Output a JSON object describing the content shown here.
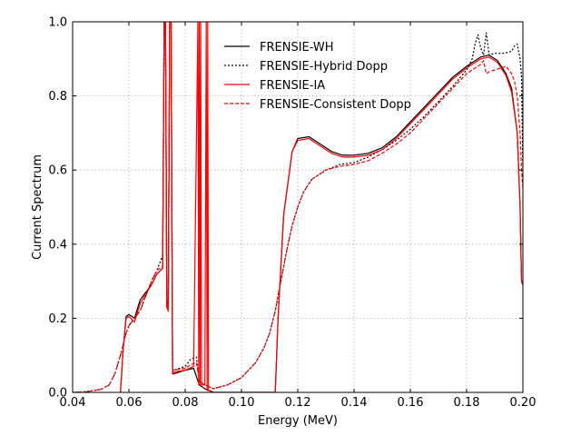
{
  "chart_data": {
    "type": "line",
    "xlabel": "Energy (MeV)",
    "ylabel": "Current Spectrum",
    "xlim": [
      0.04,
      0.2
    ],
    "ylim": [
      0,
      1.0
    ],
    "xticks": [
      "0.04",
      "0.06",
      "0.08",
      "0.10",
      "0.12",
      "0.14",
      "0.16",
      "0.18",
      "0.20"
    ],
    "yticks": [
      "0.0",
      "0.2",
      "0.4",
      "0.6",
      "0.8",
      "1.0"
    ],
    "grid": true,
    "legend_position": "top-right",
    "series": [
      {
        "name": "FRENSIE-WH",
        "color": "#000000",
        "dash": "solid",
        "x": [
          0.057,
          0.058,
          0.059,
          0.06,
          0.062,
          0.064,
          0.066,
          0.068,
          0.07,
          0.072,
          0.0725,
          0.073,
          0.0735,
          0.074,
          0.0745,
          0.075,
          0.0755,
          0.076,
          0.08,
          0.083,
          0.085,
          0.087,
          0.09,
          0.1,
          0.108,
          0.11,
          0.112,
          0.113,
          0.115,
          0.118,
          0.12,
          0.124,
          0.128,
          0.132,
          0.136,
          0.14,
          0.145,
          0.15,
          0.155,
          0.16,
          0.165,
          0.17,
          0.175,
          0.18,
          0.185,
          0.188,
          0.191,
          0.194,
          0.196,
          0.198,
          0.199,
          0.1995,
          0.2
        ],
        "y": [
          0.0,
          0.12,
          0.205,
          0.21,
          0.2,
          0.25,
          0.27,
          0.29,
          0.32,
          0.335,
          1.0,
          1.0,
          0.23,
          0.22,
          1.0,
          1.0,
          0.05,
          0.05,
          0.06,
          0.065,
          0.02,
          0.01,
          0.0,
          0.0,
          0.0,
          0.0,
          0.0,
          0.2,
          0.48,
          0.65,
          0.685,
          0.69,
          0.67,
          0.65,
          0.64,
          0.64,
          0.645,
          0.66,
          0.69,
          0.73,
          0.77,
          0.81,
          0.85,
          0.88,
          0.905,
          0.91,
          0.895,
          0.86,
          0.82,
          0.7,
          0.5,
          0.3,
          0.29
        ]
      },
      {
        "name": "FRENSIE-Hybrid Dopp",
        "color": "#000000",
        "dash": "dotted",
        "x": [
          0.04,
          0.045,
          0.05,
          0.053,
          0.055,
          0.057,
          0.059,
          0.06,
          0.062,
          0.064,
          0.066,
          0.068,
          0.07,
          0.072,
          0.0725,
          0.073,
          0.0735,
          0.074,
          0.0745,
          0.075,
          0.0755,
          0.076,
          0.08,
          0.082,
          0.084,
          0.085,
          0.087,
          0.09,
          0.095,
          0.1,
          0.105,
          0.108,
          0.11,
          0.112,
          0.114,
          0.116,
          0.118,
          0.12,
          0.122,
          0.125,
          0.13,
          0.135,
          0.14,
          0.145,
          0.15,
          0.155,
          0.16,
          0.165,
          0.17,
          0.175,
          0.18,
          0.182,
          0.183,
          0.184,
          0.185,
          0.186,
          0.187,
          0.188,
          0.19,
          0.193,
          0.196,
          0.197,
          0.198,
          0.199,
          0.1995,
          0.2
        ],
        "y": [
          0.0,
          0.002,
          0.008,
          0.02,
          0.05,
          0.1,
          0.16,
          0.18,
          0.2,
          0.22,
          0.26,
          0.3,
          0.33,
          0.37,
          1.0,
          1.0,
          0.25,
          0.24,
          1.0,
          1.0,
          0.06,
          0.06,
          0.07,
          0.09,
          0.095,
          0.03,
          0.02,
          0.01,
          0.02,
          0.04,
          0.08,
          0.12,
          0.16,
          0.22,
          0.3,
          0.38,
          0.45,
          0.5,
          0.54,
          0.575,
          0.6,
          0.615,
          0.62,
          0.635,
          0.655,
          0.68,
          0.71,
          0.745,
          0.785,
          0.825,
          0.87,
          0.9,
          0.94,
          0.965,
          0.93,
          0.91,
          0.97,
          0.91,
          0.915,
          0.915,
          0.92,
          0.935,
          0.94,
          0.9,
          0.85,
          0.6
        ]
      },
      {
        "name": "FRENSIE-IA",
        "color": "#ff0000",
        "dash": "solid",
        "x": [
          0.057,
          0.058,
          0.059,
          0.06,
          0.062,
          0.064,
          0.066,
          0.068,
          0.07,
          0.072,
          0.0725,
          0.073,
          0.0735,
          0.074,
          0.0745,
          0.075,
          0.0755,
          0.076,
          0.08,
          0.083,
          0.0845,
          0.0848,
          0.085,
          0.0853,
          0.0855,
          0.0858,
          0.086,
          0.087,
          0.0875,
          0.0878,
          0.088,
          0.0883,
          0.089,
          0.09,
          0.1,
          0.108,
          0.11,
          0.112,
          0.113,
          0.115,
          0.118,
          0.12,
          0.124,
          0.128,
          0.132,
          0.136,
          0.14,
          0.145,
          0.15,
          0.155,
          0.16,
          0.165,
          0.17,
          0.175,
          0.18,
          0.185,
          0.188,
          0.191,
          0.194,
          0.196,
          0.198,
          0.199,
          0.1995,
          0.2
        ],
        "y": [
          0.0,
          0.12,
          0.2,
          0.205,
          0.19,
          0.24,
          0.265,
          0.29,
          0.32,
          0.335,
          1.0,
          1.0,
          0.23,
          0.22,
          1.0,
          1.0,
          0.05,
          0.055,
          0.06,
          0.07,
          1.0,
          0.02,
          1.0,
          0.02,
          1.0,
          0.02,
          0.02,
          0.02,
          1.0,
          0.005,
          1.0,
          0.005,
          0.005,
          0.0,
          0.0,
          0.0,
          0.0,
          0.0,
          0.2,
          0.48,
          0.65,
          0.68,
          0.685,
          0.665,
          0.645,
          0.635,
          0.635,
          0.64,
          0.655,
          0.685,
          0.725,
          0.765,
          0.805,
          0.845,
          0.875,
          0.9,
          0.905,
          0.89,
          0.855,
          0.81,
          0.7,
          0.5,
          0.3,
          0.29
        ]
      },
      {
        "name": "FRENSIE-Consistent Dopp",
        "color": "#ff0000",
        "dash": "dashed",
        "x": [
          0.04,
          0.045,
          0.05,
          0.053,
          0.055,
          0.057,
          0.059,
          0.06,
          0.062,
          0.064,
          0.066,
          0.068,
          0.07,
          0.072,
          0.0725,
          0.073,
          0.0735,
          0.074,
          0.0745,
          0.075,
          0.0755,
          0.076,
          0.08,
          0.082,
          0.084,
          0.085,
          0.087,
          0.09,
          0.095,
          0.1,
          0.105,
          0.108,
          0.11,
          0.112,
          0.114,
          0.116,
          0.118,
          0.12,
          0.122,
          0.125,
          0.13,
          0.135,
          0.14,
          0.145,
          0.15,
          0.155,
          0.16,
          0.165,
          0.17,
          0.175,
          0.18,
          0.183,
          0.185,
          0.186,
          0.187,
          0.188,
          0.19,
          0.192,
          0.194,
          0.196,
          0.197,
          0.198,
          0.199,
          0.1995,
          0.2
        ],
        "y": [
          0.0,
          0.002,
          0.008,
          0.02,
          0.05,
          0.1,
          0.16,
          0.18,
          0.2,
          0.22,
          0.26,
          0.3,
          0.33,
          0.34,
          1.0,
          1.0,
          0.24,
          0.23,
          1.0,
          1.0,
          0.06,
          0.06,
          0.065,
          0.075,
          0.08,
          0.03,
          0.02,
          0.01,
          0.02,
          0.04,
          0.08,
          0.12,
          0.16,
          0.22,
          0.3,
          0.38,
          0.45,
          0.5,
          0.54,
          0.575,
          0.6,
          0.61,
          0.615,
          0.625,
          0.645,
          0.67,
          0.7,
          0.74,
          0.78,
          0.82,
          0.86,
          0.875,
          0.885,
          0.895,
          0.86,
          0.865,
          0.87,
          0.875,
          0.88,
          0.86,
          0.84,
          0.8,
          0.7,
          0.6,
          0.55
        ]
      }
    ]
  }
}
